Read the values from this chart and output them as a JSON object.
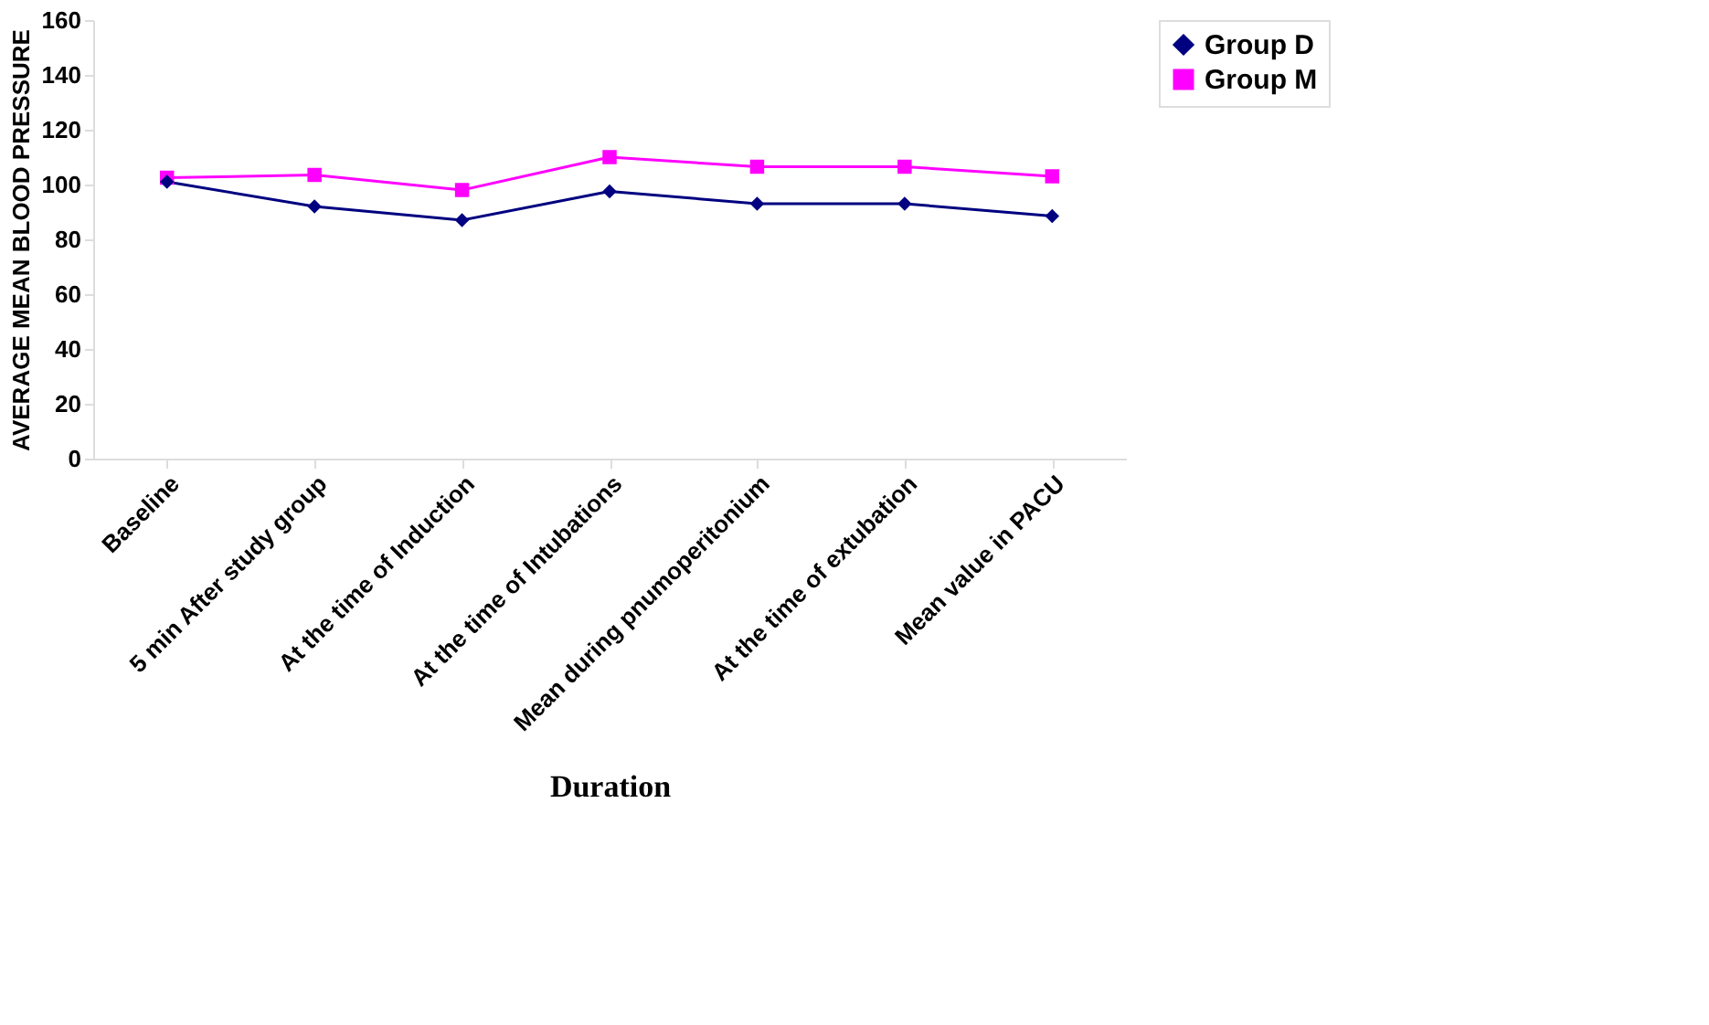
{
  "chart_data": {
    "type": "line",
    "xlabel": "Duration",
    "ylabel": "AVERAGE MEAN BLOOD PRESSURE",
    "categories": [
      "Baseline",
      "5 min After study group",
      "At the time of Induction",
      "At the time of Intubations",
      "Mean during pnumoperitonium",
      "At the time of extubation",
      "Mean value in PACU"
    ],
    "series": [
      {
        "name": "Group D",
        "color": "#000080",
        "marker": "diamond",
        "values": [
          101,
          92,
          87,
          97.5,
          93,
          93,
          88.5
        ]
      },
      {
        "name": "Group M",
        "color": "#ff00ff",
        "marker": "square",
        "values": [
          102.5,
          103.5,
          98,
          110,
          106.5,
          106.5,
          103
        ]
      }
    ],
    "ylim": [
      0,
      160
    ],
    "yticks": [
      0,
      20,
      40,
      60,
      80,
      100,
      120,
      140,
      160
    ],
    "grid": false,
    "legend": "right",
    "line_style": "solid"
  }
}
